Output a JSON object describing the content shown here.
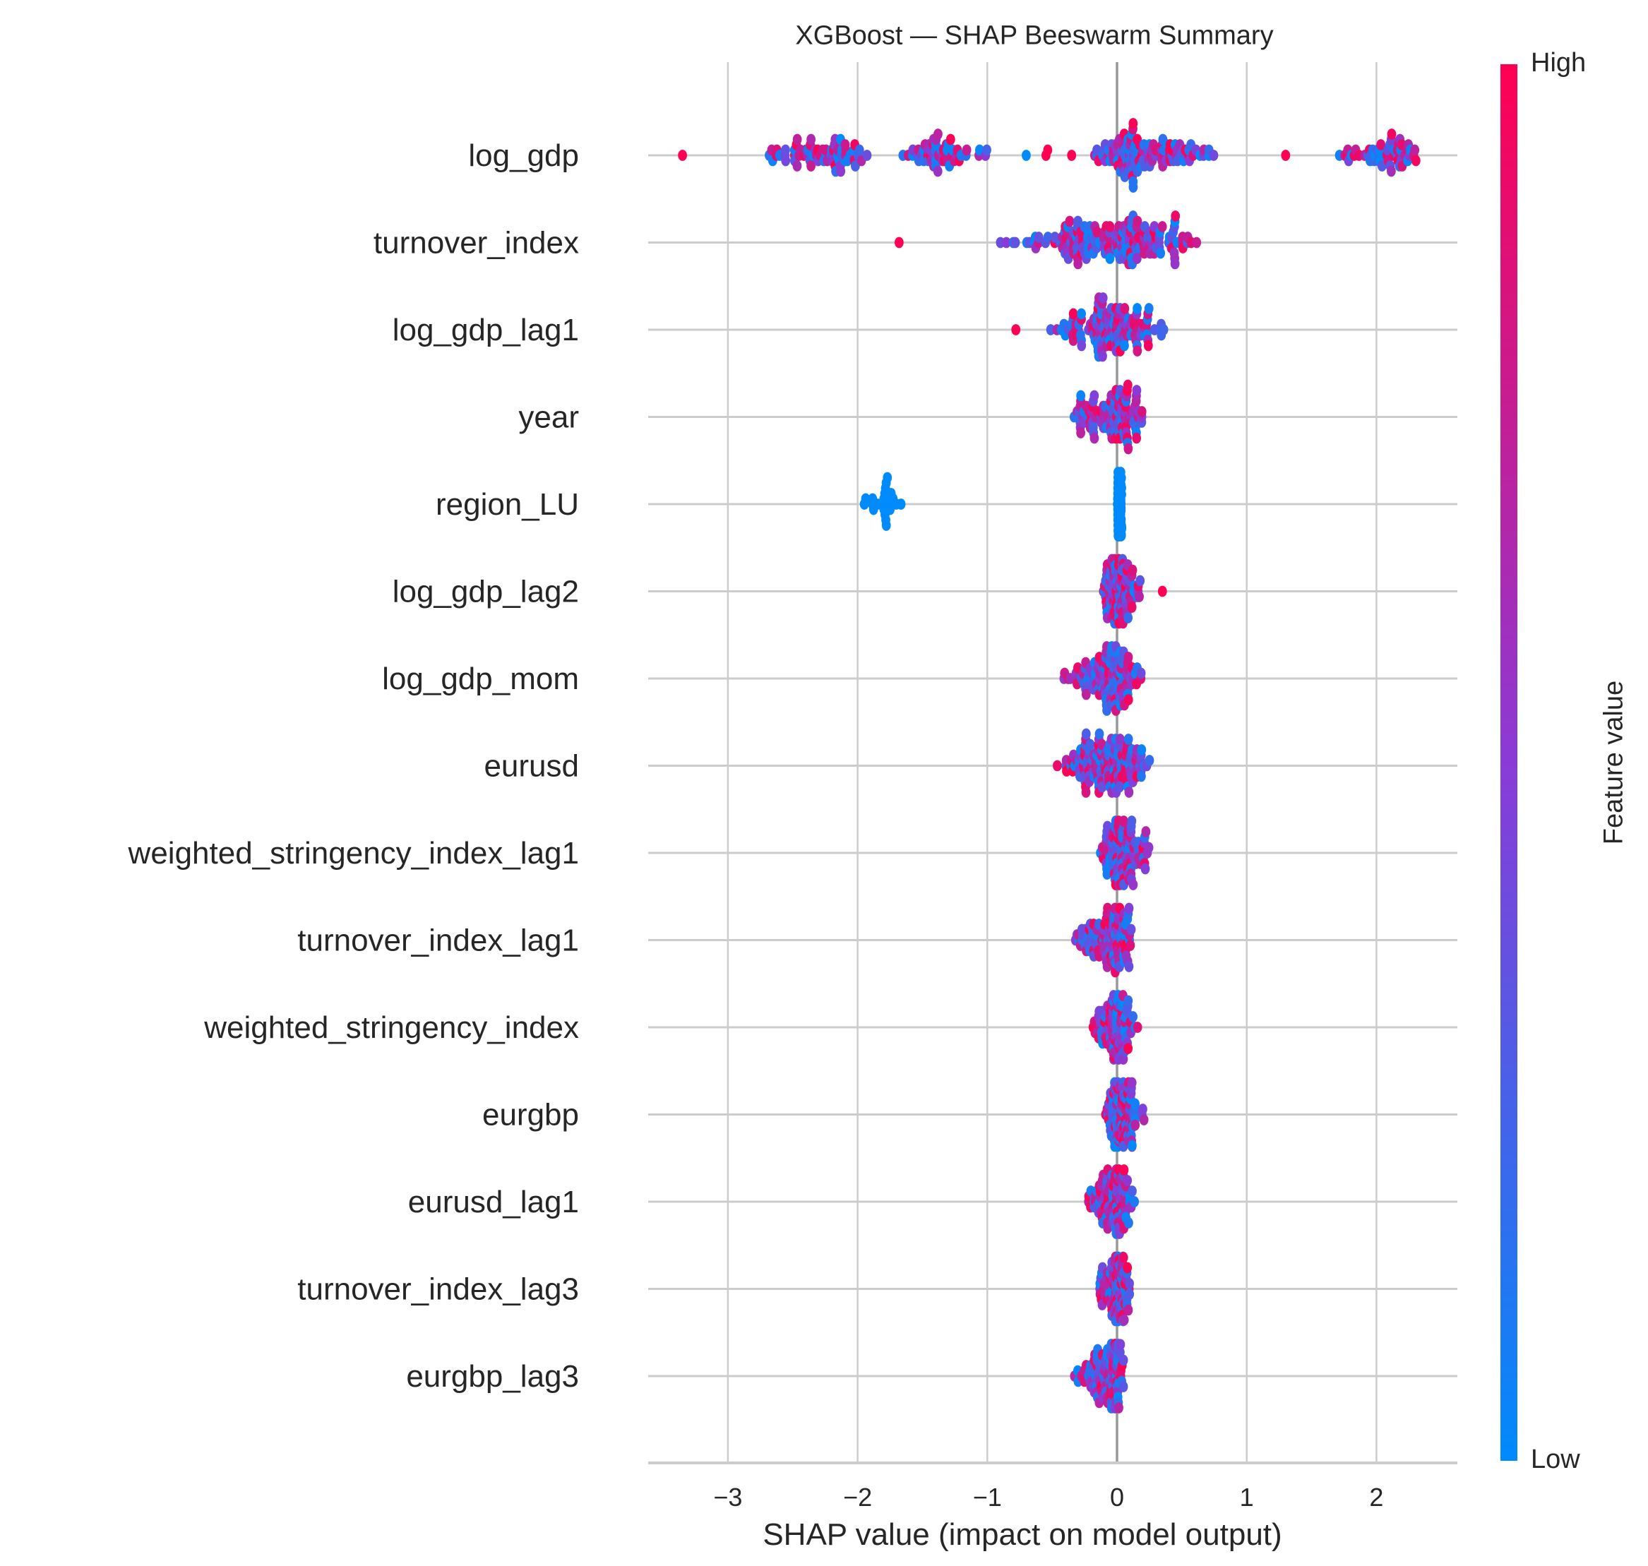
{
  "chart_data": {
    "type": "scatter",
    "subtype": "shap-beeswarm",
    "title": "XGBoost — SHAP Beeswarm Summary",
    "xlabel": "SHAP value (impact on model output)",
    "ylabel": "",
    "xlim": [
      -3.65,
      2.6
    ],
    "xticks": [
      -3,
      -2,
      -1,
      0,
      1,
      2
    ],
    "xtick_labels": [
      "−3",
      "−2",
      "−1",
      "0",
      "1",
      "2"
    ],
    "grid": true,
    "colorbar": {
      "label": "Feature value",
      "high_label": "High",
      "low_label": "Low",
      "low_color": "#008afb",
      "mid_color": "#8a3bd7",
      "high_color": "#ff0052",
      "position": "right"
    },
    "features": [
      {
        "name": "log_gdp",
        "clusters": [
          {
            "range": [
              -3.35,
              -3.35
            ],
            "n": 1,
            "feature_value": "high"
          },
          {
            "range": [
              -2.8,
              -1.85
            ],
            "n": 70,
            "peak": -2.15,
            "feature_value": "mixed"
          },
          {
            "range": [
              -1.75,
              -0.95
            ],
            "n": 55,
            "peak": -1.4,
            "feature_value": "mixed"
          },
          {
            "range": [
              -0.7,
              -0.7
            ],
            "n": 1,
            "feature_value": "low"
          },
          {
            "range": [
              -0.55,
              -0.5
            ],
            "n": 2,
            "feature_value": "high"
          },
          {
            "range": [
              -0.35,
              -0.35
            ],
            "n": 1,
            "feature_value": "high"
          },
          {
            "range": [
              -0.2,
              0.82
            ],
            "n": 120,
            "peak": 0.05,
            "feature_value": "mixed"
          },
          {
            "range": [
              1.3,
              1.3
            ],
            "n": 1,
            "feature_value": "high"
          },
          {
            "range": [
              1.7,
              2.35
            ],
            "n": 55,
            "peak": 2.1,
            "feature_value": "mixed"
          }
        ]
      },
      {
        "name": "turnover_index",
        "clusters": [
          {
            "range": [
              -1.68,
              -1.68
            ],
            "n": 1,
            "feature_value": "high"
          },
          {
            "range": [
              -0.98,
              0.68
            ],
            "n": 180,
            "peak": 0.1,
            "feature_value": "mixed"
          }
        ]
      },
      {
        "name": "log_gdp_lag1",
        "clusters": [
          {
            "range": [
              -0.78,
              -0.78
            ],
            "n": 1,
            "feature_value": "high"
          },
          {
            "range": [
              -0.55,
              0.4
            ],
            "n": 130,
            "peak": 0.0,
            "feature_value": "mixed"
          }
        ]
      },
      {
        "name": "year",
        "clusters": [
          {
            "range": [
              -0.4,
              0.25
            ],
            "n": 110,
            "peak": 0.02,
            "feature_value": "mixed"
          }
        ]
      },
      {
        "name": "region_LU",
        "clusters": [
          {
            "range": [
              -1.98,
              -1.62
            ],
            "n": 25,
            "peak": -1.8,
            "feature_value": "low"
          },
          {
            "range": [
              0.0,
              0.04
            ],
            "n": 150,
            "peak": 0.02,
            "feature_value": "low"
          }
        ]
      },
      {
        "name": "log_gdp_lag2",
        "clusters": [
          {
            "range": [
              -0.12,
              0.2
            ],
            "n": 110,
            "peak": -0.02,
            "feature_value": "mixed"
          },
          {
            "range": [
              0.35,
              0.35
            ],
            "n": 1,
            "feature_value": "high"
          }
        ]
      },
      {
        "name": "log_gdp_mom",
        "clusters": [
          {
            "range": [
              -0.42,
              0.2
            ],
            "n": 120,
            "peak": 0.0,
            "feature_value": "mixed"
          }
        ]
      },
      {
        "name": "eurusd",
        "clusters": [
          {
            "range": [
              -0.52,
              0.28
            ],
            "n": 140,
            "peak": 0.0,
            "feature_value": "mixed"
          }
        ]
      },
      {
        "name": "weighted_stringency_index_lag1",
        "clusters": [
          {
            "range": [
              -0.15,
              0.28
            ],
            "n": 110,
            "peak": 0.0,
            "feature_value": "mixed"
          }
        ]
      },
      {
        "name": "turnover_index_lag1",
        "clusters": [
          {
            "range": [
              -0.35,
              0.12
            ],
            "n": 110,
            "peak": 0.04,
            "feature_value": "mixed"
          }
        ]
      },
      {
        "name": "weighted_stringency_index",
        "clusters": [
          {
            "range": [
              -0.2,
              0.18
            ],
            "n": 110,
            "peak": 0.0,
            "feature_value": "mixed"
          }
        ]
      },
      {
        "name": "eurgbp",
        "clusters": [
          {
            "range": [
              -0.12,
              0.22
            ],
            "n": 110,
            "peak": 0.0,
            "feature_value": "mixed"
          }
        ]
      },
      {
        "name": "eurusd_lag1",
        "clusters": [
          {
            "range": [
              -0.25,
              0.15
            ],
            "n": 100,
            "peak": 0.02,
            "feature_value": "mixed"
          }
        ]
      },
      {
        "name": "turnover_index_lag3",
        "clusters": [
          {
            "range": [
              -0.15,
              0.12
            ],
            "n": 100,
            "peak": 0.0,
            "feature_value": "mixed"
          }
        ]
      },
      {
        "name": "eurgbp_lag3",
        "clusters": [
          {
            "range": [
              -0.35,
              0.06
            ],
            "n": 110,
            "peak": 0.02,
            "feature_value": "mixed"
          }
        ]
      }
    ]
  }
}
